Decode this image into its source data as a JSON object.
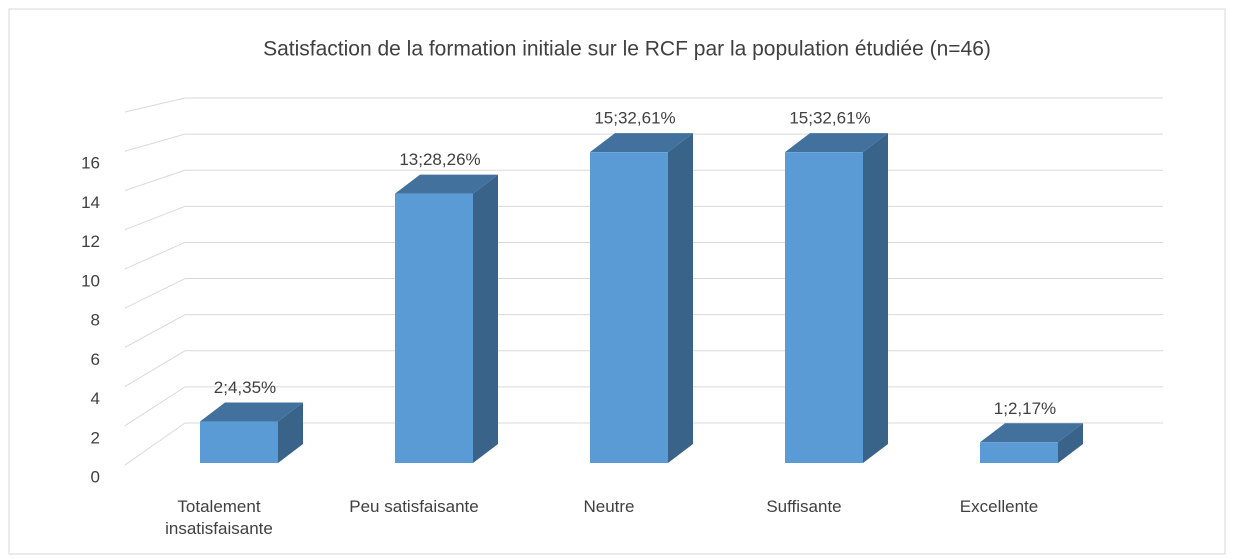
{
  "chart_data": {
    "type": "bar3d",
    "title": "Satisfaction de la formation initiale sur le RCF par la population étudiée (n=46)",
    "categories": [
      "Totalement insatisfaisante",
      "Peu satisfaisante",
      "Neutre",
      "Suffisante",
      "Excellente"
    ],
    "values": [
      2,
      13,
      15,
      15,
      1
    ],
    "value_labels": [
      "2;4,35%",
      "13;28,26%",
      "15;32,61%",
      "15;32,61%",
      "1;2,17%"
    ],
    "color": "#5b9bd5",
    "ylim": [
      0,
      18
    ],
    "yticks": [
      0,
      2,
      4,
      6,
      8,
      10,
      12,
      14,
      16
    ],
    "grid": true
  }
}
